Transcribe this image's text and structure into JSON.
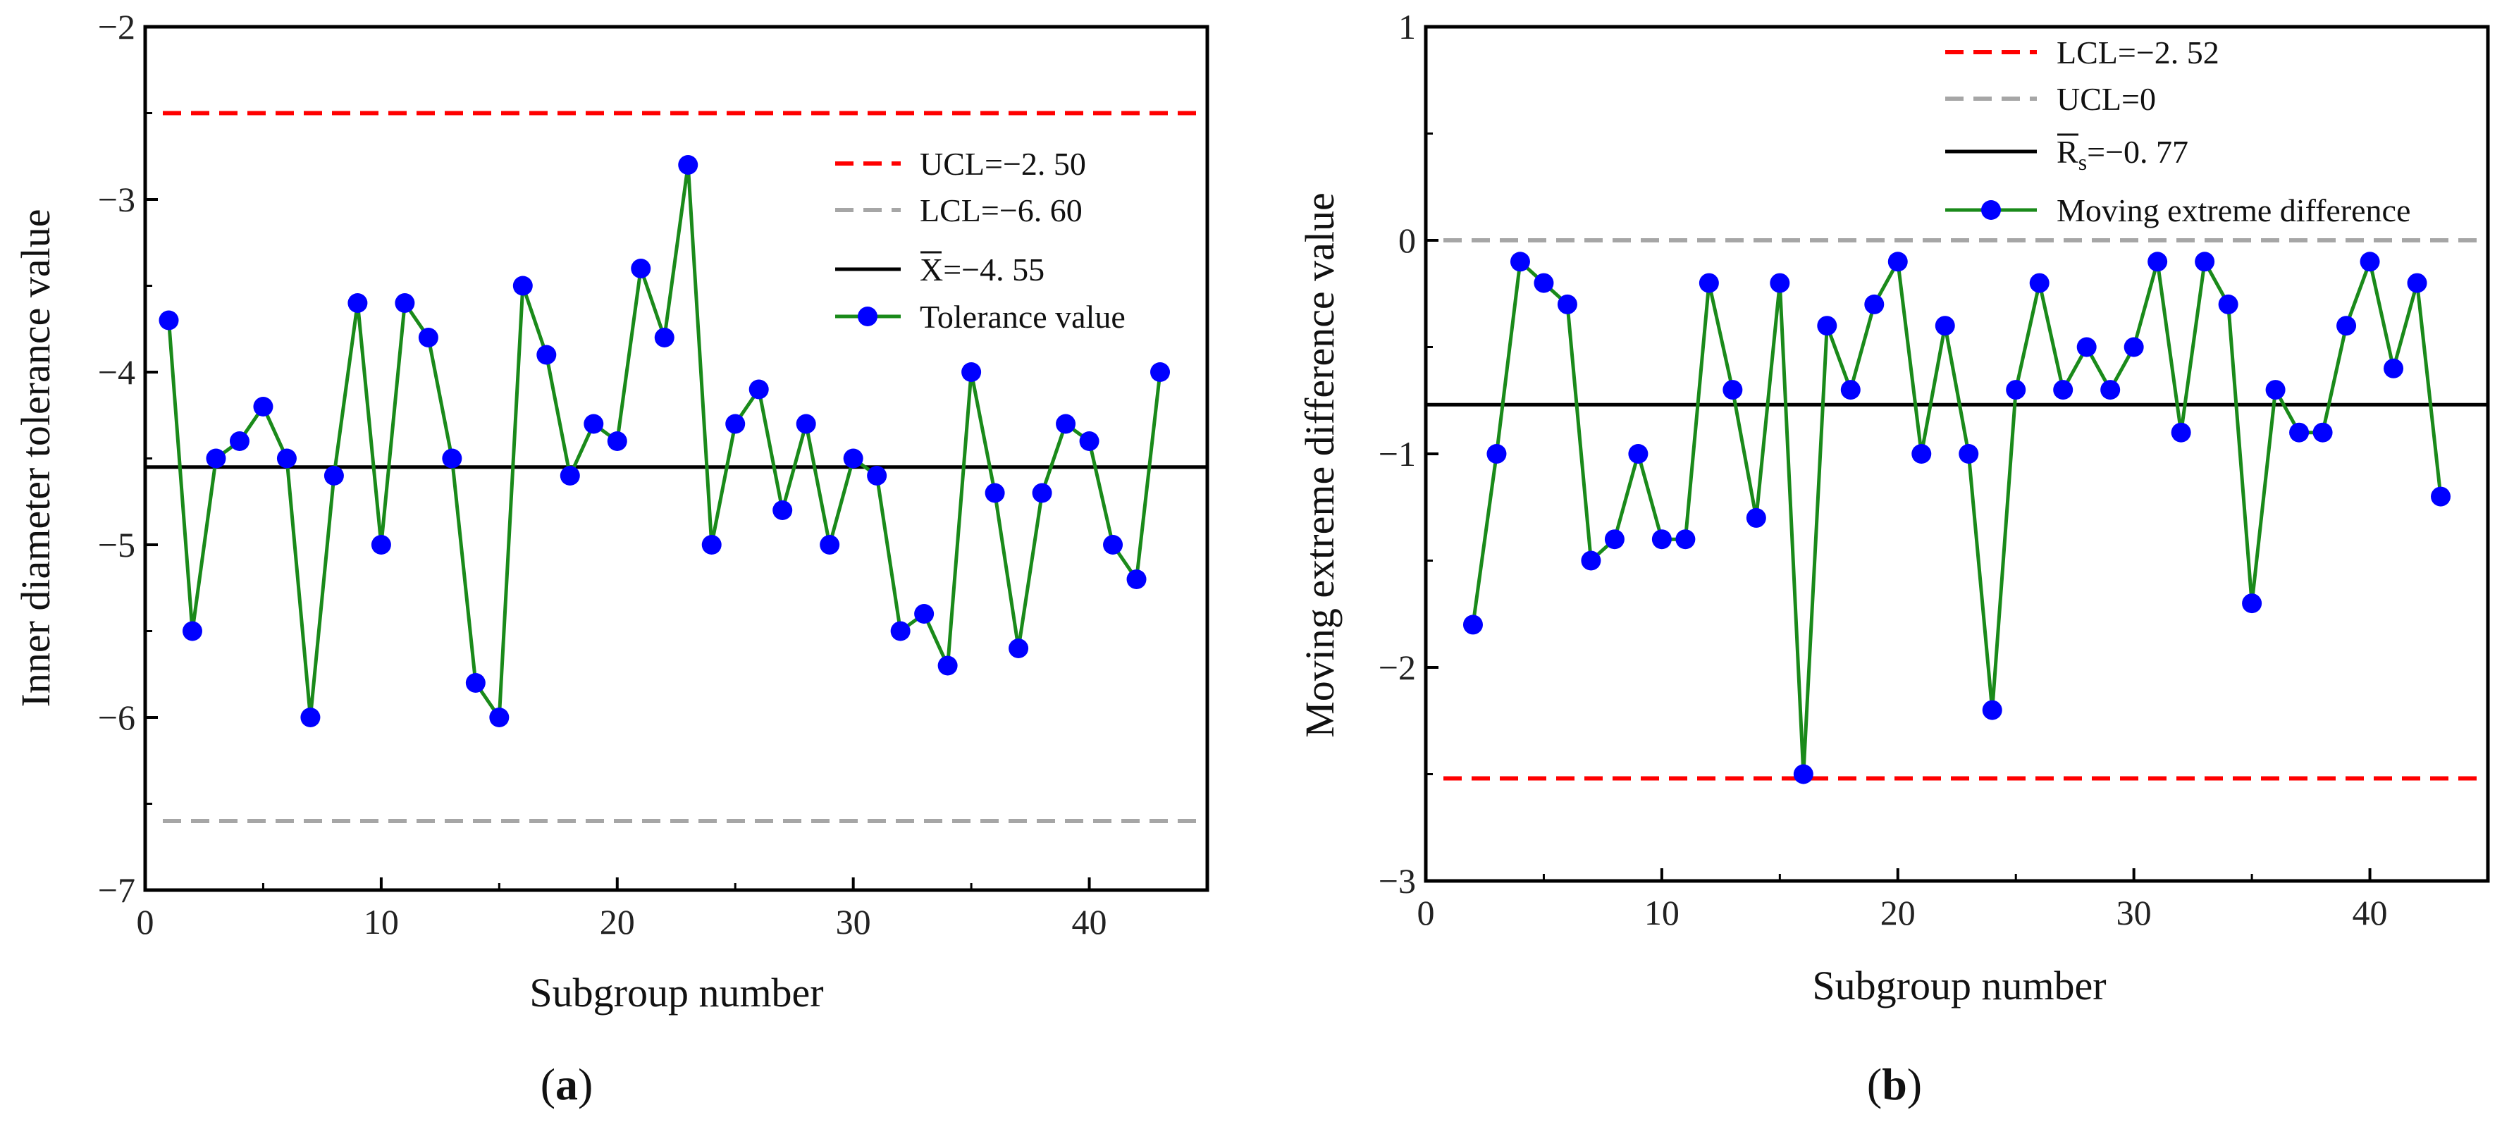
{
  "chart_data": [
    {
      "type": "line",
      "panel_label": "(a)",
      "panel_letter": "a",
      "xlabel": "Subgroup number",
      "ylabel": "Inner diameter tolerance value",
      "xlim": [
        0,
        45
      ],
      "ylim": [
        -7,
        -2
      ],
      "xticks": [
        0,
        10,
        20,
        30,
        40
      ],
      "yticks": [
        -7,
        -6,
        -5,
        -4,
        -3,
        -2
      ],
      "ytick_labels": [
        "−7",
        "−6",
        "−5",
        "−4",
        "−3",
        "−2"
      ],
      "legend_position": "upper-right",
      "reference_lines": [
        {
          "name": "UCL",
          "legend": "UCL=−2. 50",
          "value": -2.5,
          "color": "#ff0000",
          "style": "dashed"
        },
        {
          "name": "LCL",
          "legend": "LCL=−6. 60",
          "value": -6.6,
          "color": "#a6a6a6",
          "style": "dashed"
        },
        {
          "name": "mean",
          "legend_symbol": "X",
          "legend_value": "=−4. 55",
          "value": -4.55,
          "color": "#000000",
          "style": "solid"
        }
      ],
      "series": [
        {
          "name": "Tolerance value",
          "line_color": "#1a8a1a",
          "marker_color": "#0000ff",
          "x": [
            1,
            2,
            3,
            4,
            5,
            6,
            7,
            8,
            9,
            10,
            11,
            12,
            13,
            14,
            15,
            16,
            17,
            18,
            19,
            20,
            21,
            22,
            23,
            24,
            25,
            26,
            27,
            28,
            29,
            30,
            31,
            32,
            33,
            34,
            35,
            36,
            37,
            38,
            39,
            40,
            41,
            42,
            43
          ],
          "values": [
            -3.7,
            -5.5,
            -4.5,
            -4.4,
            -4.2,
            -4.5,
            -6.0,
            -4.6,
            -3.6,
            -5.0,
            -3.6,
            -3.8,
            -4.5,
            -5.8,
            -6.0,
            -3.5,
            -3.9,
            -4.6,
            -4.3,
            -4.4,
            -3.4,
            -3.8,
            -2.8,
            -5.0,
            -4.3,
            -4.1,
            -4.8,
            -4.3,
            -5.0,
            -4.5,
            -4.6,
            -5.5,
            -5.4,
            -5.7,
            -4.0,
            -4.7,
            -5.6,
            -4.7,
            -4.3,
            -4.4,
            -5.0,
            -5.2,
            -4.0
          ]
        }
      ]
    },
    {
      "type": "line",
      "panel_label": "(b)",
      "panel_letter": "b",
      "xlabel": "Subgroup number",
      "ylabel": "Moving extreme difference value",
      "xlim": [
        0,
        45
      ],
      "ylim": [
        -3,
        1
      ],
      "xticks": [
        0,
        10,
        20,
        30,
        40
      ],
      "yticks": [
        -3,
        -2,
        -1,
        0,
        1
      ],
      "ytick_labels": [
        "−3",
        "−2",
        "−1",
        "0",
        "1"
      ],
      "legend_position": "upper-right",
      "reference_lines": [
        {
          "name": "LCL",
          "legend": "LCL=−2. 52",
          "value": -2.52,
          "color": "#ff0000",
          "style": "dashed"
        },
        {
          "name": "UCL",
          "legend": "UCL=0",
          "value": 0,
          "color": "#a6a6a6",
          "style": "dashed"
        },
        {
          "name": "mean",
          "legend_symbol": "R",
          "legend_subscript": "s",
          "legend_value": "=−0. 77",
          "value": -0.77,
          "color": "#000000",
          "style": "solid"
        }
      ],
      "series": [
        {
          "name": "Moving extreme difference",
          "line_color": "#1a8a1a",
          "marker_color": "#0000ff",
          "x": [
            2,
            3,
            4,
            5,
            6,
            7,
            8,
            9,
            10,
            11,
            12,
            13,
            14,
            15,
            16,
            17,
            18,
            19,
            20,
            21,
            22,
            23,
            24,
            25,
            26,
            27,
            28,
            29,
            30,
            31,
            32,
            33,
            34,
            35,
            36,
            37,
            38,
            39,
            40,
            41,
            42,
            43
          ],
          "values": [
            -1.8,
            -1.0,
            -0.1,
            -0.2,
            -0.3,
            -1.5,
            -1.4,
            -1.0,
            -1.4,
            -1.4,
            -0.2,
            -0.7,
            -1.3,
            -0.2,
            -2.5,
            -0.4,
            -0.7,
            -0.3,
            -0.1,
            -1.0,
            -0.4,
            -1.0,
            -2.2,
            -0.7,
            -0.2,
            -0.7,
            -0.5,
            -0.7,
            -0.5,
            -0.1,
            -0.9,
            -0.1,
            -0.3,
            -1.7,
            -0.7,
            -0.9,
            -0.9,
            -0.4,
            -0.1,
            -0.6,
            -0.2,
            -1.2
          ]
        }
      ]
    }
  ]
}
